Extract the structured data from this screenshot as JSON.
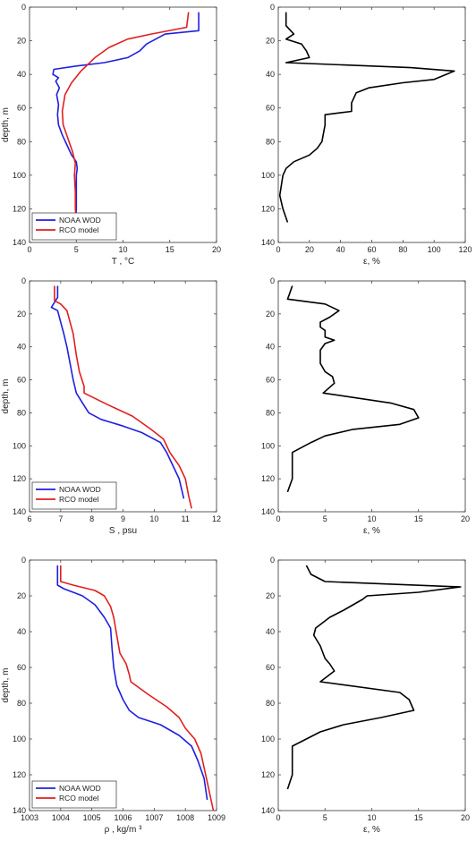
{
  "chart_data": [
    {
      "type": "line",
      "xlabel": "T , °C",
      "ylabel": "depth, m",
      "xlim": [
        0,
        20
      ],
      "ylim": [
        0,
        140
      ],
      "y_reversed": true,
      "xticks": [
        0,
        5,
        10,
        15,
        20
      ],
      "yticks": [
        0,
        20,
        40,
        60,
        80,
        100,
        120,
        140
      ],
      "legend": "bottom-left",
      "series": [
        {
          "name": "NOAA WOD",
          "color": "#1f1fe0",
          "points": [
            [
              18.1,
              3
            ],
            [
              18.1,
              14
            ],
            [
              14.5,
              16
            ],
            [
              12.5,
              22
            ],
            [
              11.8,
              26
            ],
            [
              10.5,
              30
            ],
            [
              8,
              33
            ],
            [
              5,
              35
            ],
            [
              2.6,
              37
            ],
            [
              2.5,
              40
            ],
            [
              3.1,
              42
            ],
            [
              2.8,
              44
            ],
            [
              3.2,
              48
            ],
            [
              2.9,
              52
            ],
            [
              3.1,
              58
            ],
            [
              3.0,
              64
            ],
            [
              3.1,
              70
            ],
            [
              3.5,
              76
            ],
            [
              4.0,
              82
            ],
            [
              4.5,
              88
            ],
            [
              5.0,
              92
            ],
            [
              5.1,
              96
            ],
            [
              5.0,
              100
            ],
            [
              5.0,
              110
            ],
            [
              5.0,
              120
            ],
            [
              4.9,
              128
            ]
          ]
        },
        {
          "name": "RCO model",
          "color": "#e01f1f",
          "points": [
            [
              17,
              3
            ],
            [
              16.8,
              12
            ],
            [
              13,
              16
            ],
            [
              10.5,
              19
            ],
            [
              8.5,
              24
            ],
            [
              7,
              30
            ],
            [
              5.5,
              38
            ],
            [
              4.5,
              45
            ],
            [
              3.8,
              52
            ],
            [
              3.5,
              62
            ],
            [
              3.6,
              70
            ],
            [
              4.1,
              78
            ],
            [
              4.6,
              86
            ],
            [
              4.9,
              93
            ],
            [
              4.8,
              100
            ],
            [
              4.9,
              110
            ],
            [
              4.9,
              120
            ],
            [
              5.0,
              128
            ]
          ]
        }
      ]
    },
    {
      "type": "line",
      "xlabel": "ε, %",
      "ylabel": "",
      "xlim": [
        0,
        120
      ],
      "ylim": [
        0,
        140
      ],
      "y_reversed": true,
      "xticks": [
        0,
        20,
        40,
        60,
        80,
        100,
        120
      ],
      "yticks": [
        0,
        20,
        40,
        60,
        80,
        100,
        120,
        140
      ],
      "series": [
        {
          "color": "#000000",
          "points": [
            [
              5,
              3
            ],
            [
              5,
              11
            ],
            [
              10,
              16
            ],
            [
              5,
              19
            ],
            [
              15,
              22
            ],
            [
              18,
              26
            ],
            [
              20,
              30
            ],
            [
              5,
              33
            ],
            [
              85,
              36
            ],
            [
              113,
              38
            ],
            [
              100,
              43
            ],
            [
              80,
              45
            ],
            [
              58,
              48
            ],
            [
              50,
              51
            ],
            [
              47,
              57
            ],
            [
              47,
              62
            ],
            [
              30,
              64
            ],
            [
              30,
              70
            ],
            [
              28,
              80
            ],
            [
              25,
              84
            ],
            [
              20,
              88
            ],
            [
              10,
              92
            ],
            [
              5,
              96
            ],
            [
              3,
              100
            ],
            [
              1,
              112
            ],
            [
              3,
              120
            ],
            [
              6,
              128
            ]
          ]
        }
      ]
    },
    {
      "type": "line",
      "xlabel": "S , psu",
      "ylabel": "depth, m",
      "xlim": [
        6,
        12
      ],
      "ylim": [
        0,
        140
      ],
      "y_reversed": true,
      "xticks": [
        6,
        7,
        8,
        9,
        10,
        11,
        12
      ],
      "yticks": [
        0,
        20,
        40,
        60,
        80,
        100,
        120,
        140
      ],
      "legend": "bottom-left",
      "series": [
        {
          "name": "NOAA WOD",
          "color": "#1f1fe0",
          "points": [
            [
              6.9,
              3
            ],
            [
              6.9,
              10
            ],
            [
              6.7,
              16
            ],
            [
              6.9,
              18
            ],
            [
              7.0,
              25
            ],
            [
              7.1,
              32
            ],
            [
              7.2,
              40
            ],
            [
              7.3,
              50
            ],
            [
              7.4,
              60
            ],
            [
              7.5,
              68
            ],
            [
              7.7,
              74
            ],
            [
              7.9,
              80
            ],
            [
              8.3,
              84
            ],
            [
              9.0,
              88
            ],
            [
              9.6,
              92
            ],
            [
              10.2,
              98
            ],
            [
              10.4,
              104
            ],
            [
              10.6,
              112
            ],
            [
              10.8,
              120
            ],
            [
              10.9,
              128
            ],
            [
              10.95,
              132
            ]
          ]
        },
        {
          "name": "RCO model",
          "color": "#e01f1f",
          "points": [
            [
              6.8,
              3
            ],
            [
              6.8,
              12
            ],
            [
              7.0,
              14
            ],
            [
              7.2,
              18
            ],
            [
              7.3,
              25
            ],
            [
              7.4,
              32
            ],
            [
              7.5,
              45
            ],
            [
              7.6,
              55
            ],
            [
              7.75,
              64
            ],
            [
              7.75,
              68
            ],
            [
              8.5,
              75
            ],
            [
              9.3,
              82
            ],
            [
              9.9,
              90
            ],
            [
              10.3,
              96
            ],
            [
              10.5,
              104
            ],
            [
              10.8,
              112
            ],
            [
              11.0,
              120
            ],
            [
              11.1,
              130
            ],
            [
              11.2,
              138
            ]
          ]
        }
      ]
    },
    {
      "type": "line",
      "xlabel": "ε, %",
      "ylabel": "",
      "xlim": [
        0,
        20
      ],
      "ylim": [
        0,
        140
      ],
      "y_reversed": true,
      "xticks": [
        0,
        5,
        10,
        15,
        20
      ],
      "yticks": [
        0,
        20,
        40,
        60,
        80,
        100,
        120,
        140
      ],
      "series": [
        {
          "color": "#000000",
          "points": [
            [
              1.5,
              3
            ],
            [
              1.2,
              8
            ],
            [
              1,
              11
            ],
            [
              5,
              14
            ],
            [
              6.5,
              18
            ],
            [
              5.5,
              22
            ],
            [
              4.5,
              25
            ],
            [
              4.5,
              28
            ],
            [
              5,
              30
            ],
            [
              5,
              34
            ],
            [
              6,
              36
            ],
            [
              5,
              38
            ],
            [
              4.5,
              42
            ],
            [
              4.5,
              50
            ],
            [
              5,
              55
            ],
            [
              5.8,
              58
            ],
            [
              6,
              62
            ],
            [
              4.8,
              68
            ],
            [
              12,
              74
            ],
            [
              14.5,
              78
            ],
            [
              15,
              83
            ],
            [
              13,
              87
            ],
            [
              8,
              90
            ],
            [
              5,
              94
            ],
            [
              3.5,
              98
            ],
            [
              1.5,
              104
            ],
            [
              1.5,
              112
            ],
            [
              1.5,
              120
            ],
            [
              1,
              128
            ]
          ]
        }
      ]
    },
    {
      "type": "line",
      "xlabel": "ρ , kg/m ³",
      "ylabel": "depth, m",
      "xlim": [
        1003,
        1009
      ],
      "ylim": [
        0,
        140
      ],
      "y_reversed": true,
      "xticks": [
        1003,
        1004,
        1005,
        1006,
        1007,
        1008,
        1009
      ],
      "yticks": [
        0,
        20,
        40,
        60,
        80,
        100,
        120,
        140
      ],
      "legend": "bottom-left",
      "series": [
        {
          "name": "NOAA WOD",
          "color": "#1f1fe0",
          "points": [
            [
              1003.9,
              3
            ],
            [
              1003.9,
              14
            ],
            [
              1004.1,
              16
            ],
            [
              1004.7,
              20
            ],
            [
              1005.1,
              25
            ],
            [
              1005.4,
              32
            ],
            [
              1005.6,
              38
            ],
            [
              1005.65,
              50
            ],
            [
              1005.7,
              60
            ],
            [
              1005.8,
              70
            ],
            [
              1006.0,
              78
            ],
            [
              1006.2,
              84
            ],
            [
              1006.5,
              88
            ],
            [
              1007.2,
              92
            ],
            [
              1007.8,
              98
            ],
            [
              1008.2,
              104
            ],
            [
              1008.4,
              112
            ],
            [
              1008.6,
              122
            ],
            [
              1008.7,
              134
            ]
          ]
        },
        {
          "name": "RCO model",
          "color": "#e01f1f",
          "points": [
            [
              1004,
              3
            ],
            [
              1004,
              12
            ],
            [
              1004.4,
              14
            ],
            [
              1005.1,
              17
            ],
            [
              1005.4,
              20
            ],
            [
              1005.6,
              26
            ],
            [
              1005.7,
              32
            ],
            [
              1005.8,
              42
            ],
            [
              1005.9,
              52
            ],
            [
              1006.1,
              58
            ],
            [
              1006.2,
              64
            ],
            [
              1006.25,
              68
            ],
            [
              1006.8,
              75
            ],
            [
              1007.4,
              82
            ],
            [
              1007.8,
              88
            ],
            [
              1008.0,
              94
            ],
            [
              1008.3,
              100
            ],
            [
              1008.5,
              108
            ],
            [
              1008.6,
              116
            ],
            [
              1008.7,
              124
            ],
            [
              1008.8,
              132
            ],
            [
              1008.9,
              140
            ]
          ]
        }
      ]
    },
    {
      "type": "line",
      "xlabel": "ε, %",
      "ylabel": "",
      "xlim": [
        0,
        20
      ],
      "ylim": [
        0,
        140
      ],
      "y_reversed": true,
      "xticks": [
        0,
        5,
        10,
        15,
        20
      ],
      "yticks": [
        0,
        20,
        40,
        60,
        80,
        100,
        120,
        140
      ],
      "series": [
        {
          "color": "#000000",
          "points": [
            [
              3,
              3
            ],
            [
              3.5,
              8
            ],
            [
              5,
              12
            ],
            [
              19.5,
              15
            ],
            [
              15,
              18
            ],
            [
              9.5,
              20
            ],
            [
              9,
              22
            ],
            [
              7,
              28
            ],
            [
              5.5,
              32
            ],
            [
              5,
              34
            ],
            [
              4,
              38
            ],
            [
              3.8,
              42
            ],
            [
              4.5,
              48
            ],
            [
              5,
              55
            ],
            [
              5.5,
              58
            ],
            [
              6,
              62
            ],
            [
              4.5,
              68
            ],
            [
              13,
              74
            ],
            [
              14,
              78
            ],
            [
              14.5,
              84
            ],
            [
              11,
              88
            ],
            [
              7,
              92
            ],
            [
              4.5,
              96
            ],
            [
              1.5,
              104
            ],
            [
              1.5,
              112
            ],
            [
              1.5,
              120
            ],
            [
              1,
              128
            ]
          ]
        }
      ]
    }
  ]
}
